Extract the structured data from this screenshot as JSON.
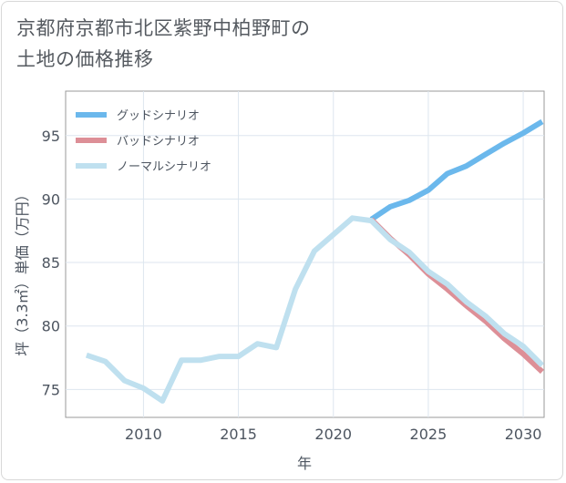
{
  "title_lines": [
    "京都府京都市北区紫野中柏野町の",
    "土地の価格推移"
  ],
  "chart_data": {
    "type": "line",
    "title": "京都府京都市北区紫野中柏野町の土地の価格推移",
    "xlabel": "年",
    "ylabel": "坪（3.3㎡）単価（万円）",
    "xlim": [
      2005.9,
      2031.1
    ],
    "ylim": [
      72.8,
      98.5
    ],
    "xticks": [
      2010,
      2015,
      2020,
      2025,
      2030
    ],
    "yticks": [
      75,
      80,
      85,
      90,
      95
    ],
    "grid": true,
    "legend_position": "top-left",
    "series": [
      {
        "name": "グッドシナリオ",
        "color": "#6bb8ec",
        "x": [
          2022,
          2023,
          2024,
          2025,
          2026,
          2027,
          2028,
          2029,
          2030,
          2031
        ],
        "y": [
          88.4,
          89.4,
          89.9,
          90.7,
          92.0,
          92.6,
          93.5,
          94.4,
          95.2,
          96.1
        ]
      },
      {
        "name": "バッドシナリオ",
        "color": "#dd8f97",
        "x": [
          2022,
          2023,
          2024,
          2025,
          2026,
          2027,
          2028,
          2029,
          2030,
          2031
        ],
        "y": [
          88.4,
          86.9,
          85.6,
          84.1,
          82.9,
          81.6,
          80.4,
          79.0,
          77.8,
          76.4
        ]
      },
      {
        "name": "ノーマルシナリオ",
        "color": "#bfe0ef",
        "x": [
          2007,
          2008,
          2009,
          2010,
          2011,
          2012,
          2013,
          2014,
          2015,
          2016,
          2017,
          2018,
          2019,
          2020,
          2021,
          2022,
          2023,
          2024,
          2025,
          2026,
          2027,
          2028,
          2029,
          2030,
          2031
        ],
        "y": [
          77.7,
          77.2,
          75.7,
          75.1,
          74.1,
          77.3,
          77.3,
          77.6,
          77.6,
          78.6,
          78.3,
          82.9,
          85.9,
          87.2,
          88.5,
          88.3,
          86.8,
          85.8,
          84.3,
          83.3,
          81.9,
          80.8,
          79.4,
          78.4,
          76.9
        ]
      }
    ]
  }
}
